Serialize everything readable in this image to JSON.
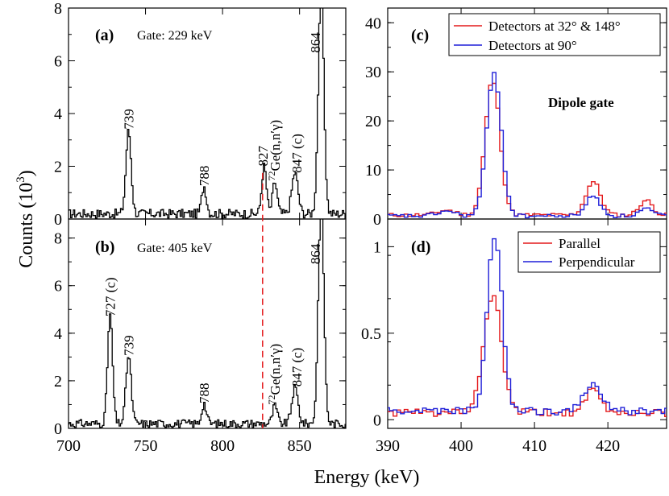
{
  "figure": {
    "ylabel_main": "Counts (10",
    "ylabel_exp": "3",
    "ylabel_close": ")",
    "xlabel": "Energy (keV)",
    "colors": {
      "black": "#000000",
      "red": "#e41a1c",
      "blue": "#1f1fd8",
      "dashed": "#e41a1c"
    }
  },
  "chart_data": [
    {
      "id": "a",
      "type": "line",
      "panel_label": "(a)",
      "annotation": "Gate: 229 keV",
      "xlim": [
        700,
        880
      ],
      "ylim": [
        0,
        8
      ],
      "yticks": [
        0,
        2,
        4,
        6,
        8
      ],
      "xticks": [],
      "peaks": [
        {
          "x": 739,
          "y": 3.15,
          "w": 1.7
        },
        {
          "x": 788,
          "y": 1.05,
          "w": 1.5
        },
        {
          "x": 827,
          "y": 1.8,
          "w": 1.5
        },
        {
          "x": 834,
          "y": 1.2,
          "w": 1.5
        },
        {
          "x": 847,
          "y": 1.55,
          "w": 2.0
        },
        {
          "x": 864,
          "y": 8.5,
          "w": 1.8
        }
      ],
      "baseline": 0.2,
      "labels": [
        {
          "text": "739",
          "x": 739,
          "y": 3.4,
          "color": "black",
          "superscript": ""
        },
        {
          "text": "788",
          "x": 788,
          "y": 1.25,
          "color": "black",
          "superscript": ""
        },
        {
          "text": "827",
          "x": 826,
          "y": 2.0,
          "color": "red",
          "superscript": ""
        },
        {
          "text": "Ge(n,n′γ)",
          "x": 834,
          "y": 1.45,
          "color": "black",
          "superscript": "72"
        },
        {
          "text": "847 (c)",
          "x": 848,
          "y": 1.75,
          "color": "black",
          "superscript": ""
        },
        {
          "text": "864",
          "x": 860,
          "y": 6.3,
          "color": "black",
          "superscript": ""
        }
      ]
    },
    {
      "id": "b",
      "type": "line",
      "panel_label": "(b)",
      "annotation": "Gate: 405 keV",
      "xlim": [
        700,
        880
      ],
      "ylim": [
        0,
        8.8
      ],
      "yticks": [
        0,
        2,
        4,
        6,
        8
      ],
      "xticks": [
        700,
        750,
        800,
        850
      ],
      "peaks": [
        {
          "x": 727,
          "y": 4.55,
          "w": 1.6
        },
        {
          "x": 739,
          "y": 2.85,
          "w": 1.7
        },
        {
          "x": 788,
          "y": 0.85,
          "w": 1.5
        },
        {
          "x": 834,
          "y": 0.75,
          "w": 1.5
        },
        {
          "x": 847,
          "y": 1.5,
          "w": 2.0
        },
        {
          "x": 864,
          "y": 9.5,
          "w": 1.8
        }
      ],
      "baseline": 0.2,
      "labels": [
        {
          "text": "727 (c)",
          "x": 727,
          "y": 4.7,
          "color": "black",
          "superscript": ""
        },
        {
          "text": "739",
          "x": 739,
          "y": 3.05,
          "color": "black",
          "superscript": ""
        },
        {
          "text": "788",
          "x": 788,
          "y": 1.05,
          "color": "black",
          "superscript": ""
        },
        {
          "text": "Ge(n,n′γ)",
          "x": 834,
          "y": 1.0,
          "color": "black",
          "superscript": "72"
        },
        {
          "text": "847 (c)",
          "x": 848,
          "y": 1.75,
          "color": "black",
          "superscript": ""
        },
        {
          "text": "864",
          "x": 860,
          "y": 6.9,
          "color": "black",
          "superscript": ""
        }
      ]
    },
    {
      "id": "c",
      "type": "line",
      "panel_label": "(c)",
      "annotation": "Dipole gate",
      "xlim": [
        390,
        428
      ],
      "ylim": [
        0,
        43
      ],
      "yticks": [
        0,
        10,
        20,
        30,
        40
      ],
      "xticks": [],
      "series": [
        {
          "name": "Detectors at 32° & 148°",
          "color": "red",
          "peaks": [
            {
              "x": 404.3,
              "y": 27.5,
              "w": 1.0
            },
            {
              "x": 418.0,
              "y": 6.8,
              "w": 1.0
            },
            {
              "x": 425.2,
              "y": 3.0,
              "w": 0.9
            },
            {
              "x": 398,
              "y": 1.0,
              "w": 1.2
            }
          ],
          "baseline": 0.8
        },
        {
          "name": "Detectors at 90°",
          "color": "blue",
          "peaks": [
            {
              "x": 404.5,
              "y": 29.0,
              "w": 1.0
            },
            {
              "x": 418.0,
              "y": 4.0,
              "w": 1.0
            },
            {
              "x": 425.2,
              "y": 1.5,
              "w": 0.9
            },
            {
              "x": 398,
              "y": 1.0,
              "w": 1.2
            }
          ],
          "baseline": 0.6
        }
      ]
    },
    {
      "id": "d",
      "type": "line",
      "panel_label": "(d)",
      "annotation": "",
      "xlim": [
        390,
        428
      ],
      "ylim": [
        -0.05,
        1.16
      ],
      "yticks": [
        0,
        0.5,
        1
      ],
      "ytick_labels": [
        "0",
        "0.5",
        "1"
      ],
      "xticks": [
        390,
        400,
        410,
        420
      ],
      "series": [
        {
          "name": "Parallel",
          "color": "red",
          "peaks": [
            {
              "x": 404.3,
              "y": 0.68,
              "w": 1.2
            },
            {
              "x": 418.0,
              "y": 0.13,
              "w": 1.0
            }
          ],
          "baseline": 0.04
        },
        {
          "name": "Perpendicular",
          "color": "blue",
          "peaks": [
            {
              "x": 404.6,
              "y": 1.02,
              "w": 1.0
            },
            {
              "x": 418.0,
              "y": 0.15,
              "w": 1.2
            }
          ],
          "baseline": 0.05
        }
      ]
    }
  ]
}
